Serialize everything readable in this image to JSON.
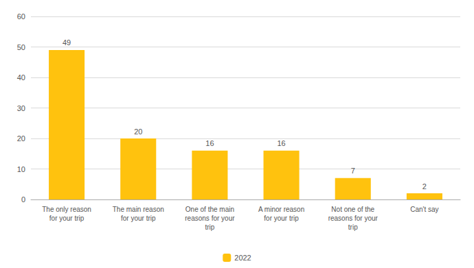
{
  "chart_data": {
    "type": "bar",
    "categories": [
      "The only reason\nfor your trip",
      "The main reason\nfor your trip",
      "One of the main\nreasons for your\ntrip",
      "A minor reason\nfor your trip",
      "Not one of the\nreasons for your\ntrip",
      "Can't say"
    ],
    "series": [
      {
        "name": "2022",
        "color": "#FFC20E",
        "values": [
          49,
          20,
          16,
          16,
          7,
          2
        ]
      }
    ],
    "ylim": [
      0,
      60
    ],
    "yticks": [
      0,
      10,
      20,
      30,
      40,
      50,
      60
    ],
    "grid": true,
    "legend": "bottom",
    "data_labels": true
  }
}
